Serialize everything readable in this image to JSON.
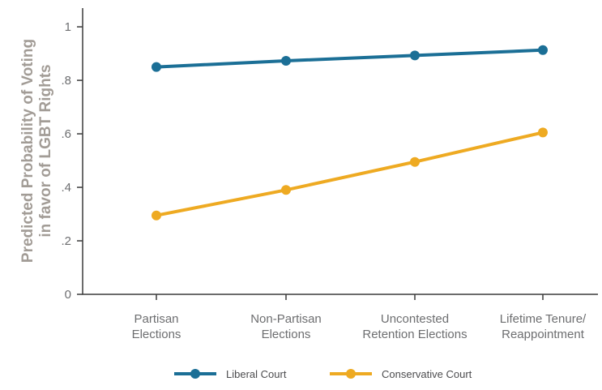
{
  "chart_data": {
    "type": "line",
    "ylabel_lines": [
      "Predicted Probability of Voting",
      "in favor of LGBT Rights"
    ],
    "xlabel": "",
    "title": "",
    "categories": [
      [
        "Partisan",
        "Elections"
      ],
      [
        "Non-Partisan",
        "Elections"
      ],
      [
        "Uncontested",
        "Retention Elections"
      ],
      [
        "Lifetime Tenure/",
        "Reappointment"
      ]
    ],
    "y_ticks": [
      {
        "value": 0,
        "label": "0"
      },
      {
        "value": 0.2,
        "label": ".2"
      },
      {
        "value": 0.4,
        "label": ".4"
      },
      {
        "value": 0.6,
        "label": ".6"
      },
      {
        "value": 0.8,
        "label": ".8"
      },
      {
        "value": 1.0,
        "label": "1"
      }
    ],
    "ylim": [
      0,
      1.07
    ],
    "grid": false,
    "legend_position": "bottom",
    "series": [
      {
        "name": "Liberal Court",
        "color": "#1b6f96",
        "values": [
          0.85,
          0.873,
          0.893,
          0.913
        ]
      },
      {
        "name": "Conservative Court",
        "color": "#eeaa22",
        "values": [
          0.295,
          0.39,
          0.495,
          0.605
        ]
      }
    ]
  }
}
